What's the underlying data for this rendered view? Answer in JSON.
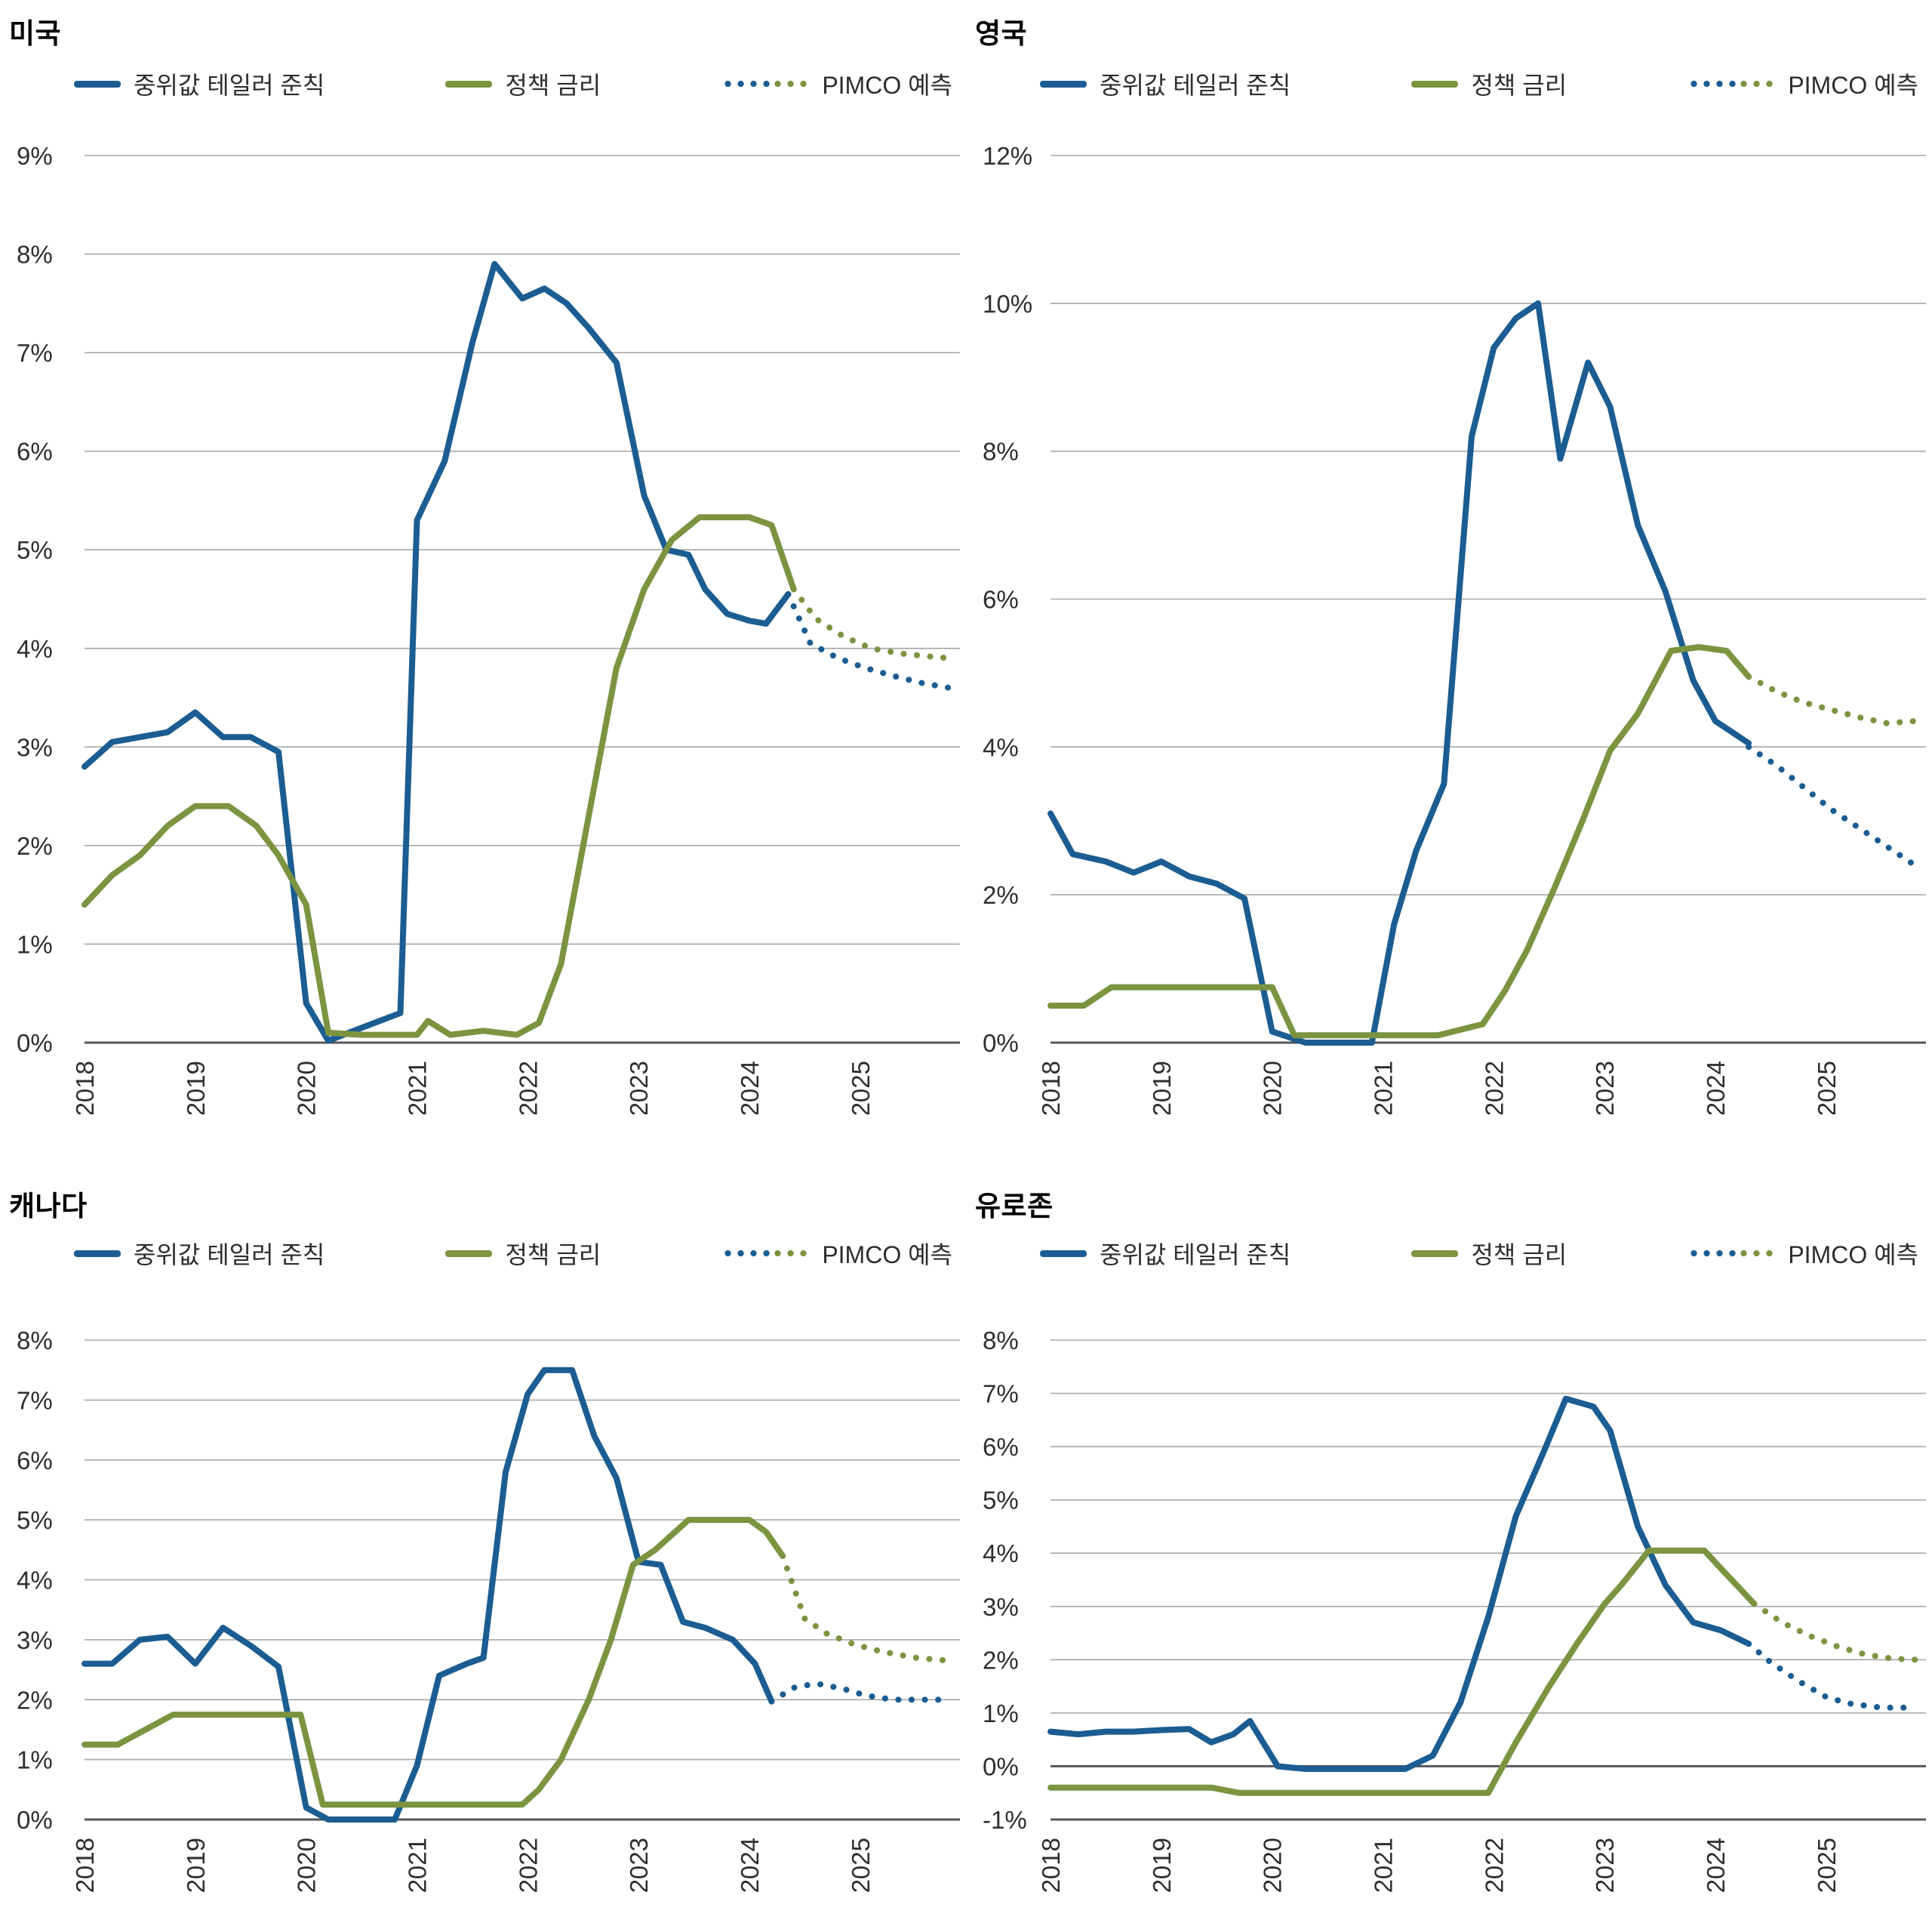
{
  "colors": {
    "blue": "#1b5d92",
    "green": "#7c9340",
    "grid": "#a7a7a7",
    "axis": "#55565a",
    "text": "#2e2e2e"
  },
  "chart_data": [
    {
      "type": "line",
      "title": "미국",
      "legend": {
        "taylor": "중위값 테일러 준칙",
        "policy": "정책 금리",
        "forecast": "PIMCO 예측"
      },
      "ylim": [
        0,
        9
      ],
      "ytick_step": 1,
      "ytick_suffix": "%",
      "xlim": [
        2018,
        2025.9
      ],
      "xticks": [
        2018,
        2019,
        2020,
        2021,
        2022,
        2023,
        2024,
        2025
      ],
      "series": [
        {
          "name": "중위값 테일러 준칙",
          "style": "solid",
          "color_key": "blue",
          "x": [
            2018.0,
            2018.25,
            2018.5,
            2018.75,
            2019.0,
            2019.25,
            2019.5,
            2019.75,
            2020.0,
            2020.2,
            2020.5,
            2020.85,
            2021.0,
            2021.25,
            2021.5,
            2021.7,
            2021.95,
            2022.15,
            2022.35,
            2022.55,
            2022.8,
            2023.05,
            2023.25,
            2023.45,
            2023.6,
            2023.8,
            2024.0,
            2024.15,
            2024.35
          ],
          "y": [
            2.8,
            3.05,
            3.1,
            3.15,
            3.35,
            3.1,
            3.1,
            2.95,
            0.4,
            0.02,
            0.15,
            0.3,
            5.3,
            5.9,
            7.1,
            7.9,
            7.55,
            7.65,
            7.5,
            7.25,
            6.9,
            5.55,
            5.0,
            4.95,
            4.6,
            4.35,
            4.28,
            4.25,
            4.55
          ]
        },
        {
          "name": "정책 금리",
          "style": "solid",
          "color_key": "green",
          "x": [
            2018.0,
            2018.25,
            2018.5,
            2018.75,
            2019.0,
            2019.3,
            2019.55,
            2019.75,
            2020.0,
            2020.2,
            2020.5,
            2021.0,
            2021.1,
            2021.3,
            2021.6,
            2021.9,
            2022.1,
            2022.3,
            2022.55,
            2022.8,
            2023.05,
            2023.3,
            2023.55,
            2023.8,
            2024.0,
            2024.2,
            2024.4
          ],
          "y": [
            1.4,
            1.7,
            1.9,
            2.2,
            2.4,
            2.4,
            2.2,
            1.9,
            1.4,
            0.1,
            0.08,
            0.08,
            0.22,
            0.08,
            0.12,
            0.08,
            0.2,
            0.8,
            2.3,
            3.8,
            4.6,
            5.1,
            5.33,
            5.33,
            5.33,
            5.25,
            4.6
          ]
        },
        {
          "name": "PIMCO 예측 (테일러 준칙)",
          "style": "dotted",
          "color_key": "blue",
          "x": [
            2024.35,
            2024.55,
            2024.8,
            2025.05,
            2025.3,
            2025.55,
            2025.8
          ],
          "y": [
            4.55,
            4.05,
            3.9,
            3.8,
            3.72,
            3.65,
            3.6
          ]
        },
        {
          "name": "PIMCO 예측 (정책 금리)",
          "style": "dotted",
          "color_key": "green",
          "x": [
            2024.4,
            2024.6,
            2024.85,
            2025.1,
            2025.35,
            2025.6,
            2025.8
          ],
          "y": [
            4.6,
            4.3,
            4.12,
            4.0,
            3.95,
            3.92,
            3.9
          ]
        }
      ]
    },
    {
      "type": "line",
      "title": "영국",
      "legend": {
        "taylor": "중위값 테일러 준칙",
        "policy": "정책 금리",
        "forecast": "PIMCO 예측"
      },
      "ylim": [
        0,
        12
      ],
      "ytick_step": 2,
      "ytick_suffix": "%",
      "xlim": [
        2018,
        2025.9
      ],
      "xticks": [
        2018,
        2019,
        2020,
        2021,
        2022,
        2023,
        2024,
        2025
      ],
      "series": [
        {
          "name": "중위값 테일러 준칙",
          "style": "solid",
          "color_key": "blue",
          "x": [
            2018.0,
            2018.2,
            2018.5,
            2018.75,
            2019.0,
            2019.25,
            2019.5,
            2019.75,
            2020.0,
            2020.3,
            2020.6,
            2020.9,
            2021.1,
            2021.3,
            2021.55,
            2021.8,
            2022.0,
            2022.2,
            2022.4,
            2022.6,
            2022.85,
            2023.05,
            2023.3,
            2023.55,
            2023.8,
            2024.0,
            2024.3
          ],
          "y": [
            3.1,
            2.55,
            2.45,
            2.3,
            2.45,
            2.25,
            2.15,
            1.95,
            0.15,
            0.0,
            -0.05,
            0.0,
            1.6,
            2.6,
            3.5,
            8.2,
            9.4,
            9.8,
            10.0,
            7.9,
            9.2,
            8.6,
            7.0,
            6.1,
            4.9,
            4.35,
            4.05
          ]
        },
        {
          "name": "정책 금리",
          "style": "solid",
          "color_key": "green",
          "x": [
            2018.0,
            2018.3,
            2018.55,
            2019.0,
            2019.5,
            2020.0,
            2020.2,
            2020.5,
            2021.0,
            2021.5,
            2021.9,
            2022.1,
            2022.3,
            2022.55,
            2022.8,
            2023.05,
            2023.3,
            2023.6,
            2023.85,
            2024.1,
            2024.3
          ],
          "y": [
            0.5,
            0.5,
            0.75,
            0.75,
            0.75,
            0.75,
            0.1,
            0.1,
            0.1,
            0.1,
            0.25,
            0.7,
            1.25,
            2.1,
            3.0,
            3.95,
            4.45,
            5.3,
            5.35,
            5.3,
            4.95
          ]
        },
        {
          "name": "PIMCO 예측 (테일러 준칙)",
          "style": "dotted",
          "color_key": "blue",
          "x": [
            2024.3,
            2024.55,
            2024.8,
            2025.05,
            2025.3,
            2025.55,
            2025.8
          ],
          "y": [
            4.0,
            3.75,
            3.45,
            3.15,
            2.9,
            2.65,
            2.4
          ]
        },
        {
          "name": "PIMCO 예측 (정책 금리)",
          "style": "dotted",
          "color_key": "green",
          "x": [
            2024.3,
            2024.55,
            2024.8,
            2025.05,
            2025.3,
            2025.55,
            2025.8
          ],
          "y": [
            4.95,
            4.75,
            4.6,
            4.5,
            4.4,
            4.32,
            4.35
          ]
        }
      ]
    },
    {
      "type": "line",
      "title": "캐나다",
      "legend": {
        "taylor": "중위값 테일러 준칙",
        "policy": "정책 금리",
        "forecast": "PIMCO 예측"
      },
      "ylim": [
        0,
        8
      ],
      "ytick_step": 1,
      "ytick_suffix": "%",
      "xlim": [
        2018,
        2025.9
      ],
      "xticks": [
        2018,
        2019,
        2020,
        2021,
        2022,
        2023,
        2024,
        2025
      ],
      "series": [
        {
          "name": "중위값 테일러 준칙",
          "style": "solid",
          "color_key": "blue",
          "x": [
            2018.0,
            2018.25,
            2018.5,
            2018.75,
            2019.0,
            2019.25,
            2019.5,
            2019.75,
            2020.0,
            2020.2,
            2020.5,
            2020.8,
            2021.0,
            2021.2,
            2021.45,
            2021.6,
            2021.8,
            2022.0,
            2022.15,
            2022.4,
            2022.6,
            2022.8,
            2023.0,
            2023.2,
            2023.4,
            2023.6,
            2023.85,
            2024.05,
            2024.2
          ],
          "y": [
            2.6,
            2.6,
            3.0,
            3.05,
            2.6,
            3.2,
            2.9,
            2.55,
            0.2,
            -0.03,
            -0.05,
            0.0,
            0.9,
            2.4,
            2.6,
            2.7,
            5.8,
            7.1,
            7.5,
            7.5,
            6.4,
            5.7,
            4.3,
            4.25,
            3.3,
            3.2,
            3.0,
            2.6,
            1.97
          ]
        },
        {
          "name": "정책 금리",
          "style": "solid",
          "color_key": "green",
          "x": [
            2018.0,
            2018.3,
            2018.55,
            2018.8,
            2019.0,
            2019.5,
            2019.95,
            2020.15,
            2020.5,
            2021.0,
            2021.5,
            2021.95,
            2022.1,
            2022.3,
            2022.55,
            2022.75,
            2022.95,
            2023.15,
            2023.45,
            2023.7,
            2024.0,
            2024.15,
            2024.3
          ],
          "y": [
            1.25,
            1.25,
            1.5,
            1.75,
            1.75,
            1.75,
            1.75,
            0.25,
            0.25,
            0.25,
            0.25,
            0.25,
            0.5,
            1.0,
            2.0,
            3.0,
            4.25,
            4.5,
            5.0,
            5.0,
            5.0,
            4.8,
            4.4
          ]
        },
        {
          "name": "PIMCO 예측 (테일러 준칙)",
          "style": "dotted",
          "color_key": "blue",
          "x": [
            2024.2,
            2024.4,
            2024.6,
            2024.85,
            2025.05,
            2025.3,
            2025.55,
            2025.8
          ],
          "y": [
            1.97,
            2.2,
            2.27,
            2.18,
            2.07,
            2.0,
            2.0,
            2.0
          ]
        },
        {
          "name": "PIMCO 예측 (정책 금리)",
          "style": "dotted",
          "color_key": "green",
          "x": [
            2024.3,
            2024.5,
            2024.7,
            2024.95,
            2025.2,
            2025.5,
            2025.8
          ],
          "y": [
            4.4,
            3.35,
            3.1,
            2.92,
            2.8,
            2.7,
            2.65
          ]
        }
      ]
    },
    {
      "type": "line",
      "title": "유로존",
      "legend": {
        "taylor": "중위값 테일러 준칙",
        "policy": "정책 금리",
        "forecast": "PIMCO 예측"
      },
      "ylim": [
        -1,
        8
      ],
      "ytick_step": 1,
      "ytick_suffix": "%",
      "xlim": [
        2018,
        2025.9
      ],
      "xticks": [
        2018,
        2019,
        2020,
        2021,
        2022,
        2023,
        2024,
        2025
      ],
      "series": [
        {
          "name": "중위값 테일러 준칙",
          "style": "solid",
          "color_key": "blue",
          "x": [
            2018.0,
            2018.25,
            2018.5,
            2018.75,
            2019.0,
            2019.25,
            2019.45,
            2019.65,
            2019.8,
            2020.05,
            2020.3,
            2020.6,
            2020.9,
            2021.2,
            2021.45,
            2021.7,
            2021.95,
            2022.2,
            2022.45,
            2022.65,
            2022.9,
            2023.05,
            2023.3,
            2023.55,
            2023.8,
            2024.05,
            2024.3
          ],
          "y": [
            0.65,
            0.6,
            0.65,
            0.65,
            0.68,
            0.7,
            0.45,
            0.6,
            0.85,
            0.0,
            -0.05,
            -0.05,
            -0.05,
            -0.05,
            0.2,
            1.2,
            2.8,
            4.7,
            5.9,
            6.9,
            6.75,
            6.3,
            4.5,
            3.4,
            2.7,
            2.55,
            2.3
          ]
        },
        {
          "name": "정책 금리",
          "style": "solid",
          "color_key": "green",
          "x": [
            2018.0,
            2018.5,
            2019.0,
            2019.45,
            2019.7,
            2020.0,
            2020.5,
            2021.0,
            2021.5,
            2021.95,
            2022.2,
            2022.5,
            2022.75,
            2023.0,
            2023.15,
            2023.4,
            2023.6,
            2023.9,
            2024.1,
            2024.35
          ],
          "y": [
            -0.4,
            -0.4,
            -0.4,
            -0.4,
            -0.5,
            -0.5,
            -0.5,
            -0.5,
            -0.5,
            -0.5,
            0.45,
            1.5,
            2.3,
            3.05,
            3.4,
            4.05,
            4.05,
            4.05,
            3.6,
            3.05
          ]
        },
        {
          "name": "PIMCO 예측 (테일러 준칙)",
          "style": "dotted",
          "color_key": "blue",
          "x": [
            2024.3,
            2024.5,
            2024.75,
            2025.0,
            2025.2,
            2025.5,
            2025.8
          ],
          "y": [
            2.3,
            1.95,
            1.6,
            1.3,
            1.18,
            1.1,
            1.1
          ]
        },
        {
          "name": "PIMCO 예측 (정책 금리)",
          "style": "dotted",
          "color_key": "green",
          "x": [
            2024.35,
            2024.6,
            2024.85,
            2025.1,
            2025.35,
            2025.6,
            2025.8
          ],
          "y": [
            3.05,
            2.7,
            2.45,
            2.25,
            2.1,
            2.02,
            2.0
          ]
        }
      ]
    }
  ]
}
